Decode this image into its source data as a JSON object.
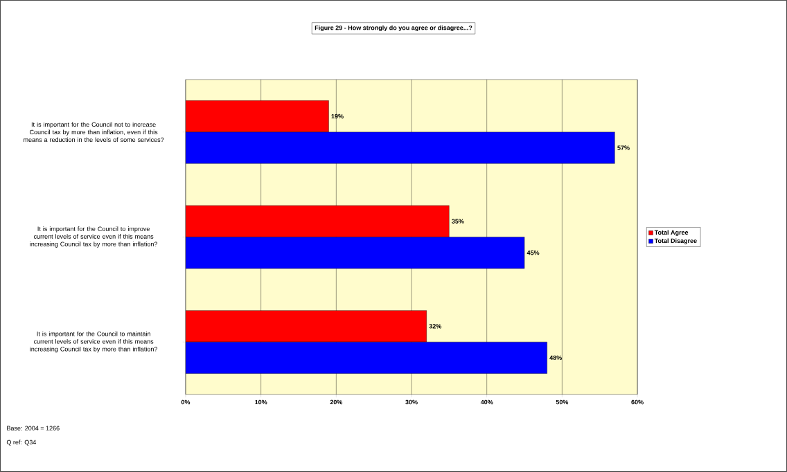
{
  "chart_data": {
    "type": "bar",
    "orientation": "horizontal",
    "title": "Figure 29 - How strongly do you agree or disagree...?",
    "categories": [
      "It is important for the Council not to increase Council tax by more than inflation, even if this means a reduction in the levels of some services?",
      "It is important for the Council to improve current levels of service even if this means increasing Council tax by more than inflation?",
      "It is important for the Council to maintain current levels of service even if this means increasing Council tax by more than inflation?"
    ],
    "series": [
      {
        "name": "Total Agree",
        "color": "#ff0000",
        "values": [
          19,
          35,
          32
        ],
        "value_labels": [
          "19%",
          "35%",
          "32%"
        ]
      },
      {
        "name": "Total Disagree",
        "color": "#0000ff",
        "values": [
          57,
          45,
          48
        ],
        "value_labels": [
          "57%",
          "45%",
          "48%"
        ]
      }
    ],
    "xlim": [
      0,
      60
    ],
    "xticks": [
      {
        "value": 0,
        "label": "0%"
      },
      {
        "value": 10,
        "label": "10%"
      },
      {
        "value": 20,
        "label": "20%"
      },
      {
        "value": 30,
        "label": "30%"
      },
      {
        "value": 40,
        "label": "40%"
      },
      {
        "value": 50,
        "label": "50%"
      },
      {
        "value": 60,
        "label": "60%"
      }
    ],
    "grid": "x",
    "legend": "right",
    "annotations": [
      "Base: 2004 = 1266",
      "Q ref: Q34"
    ]
  }
}
